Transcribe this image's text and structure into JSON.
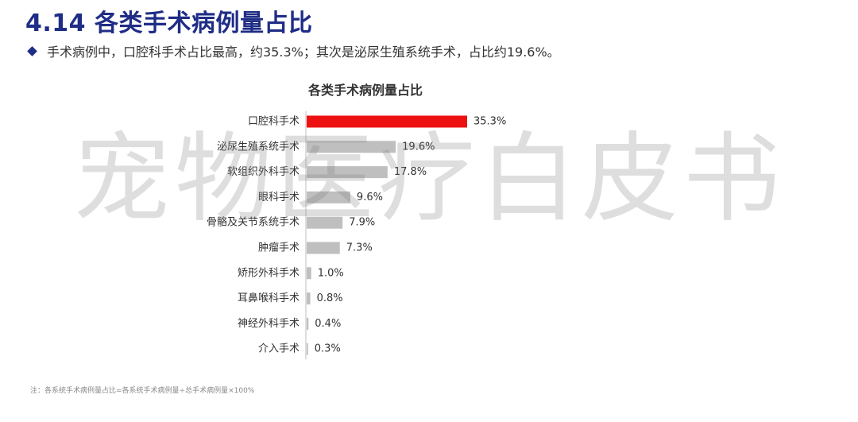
{
  "header": {
    "title": "4.14 各类手术病例量占比",
    "summary": "手术病例中，口腔科手术占比最高，约35.3%；其次是泌尿生殖系统手术，占比约19.6%。"
  },
  "watermark": "宠物医疗白皮书",
  "footnote": "注：各系统手术病例量占比=各系统手术病例量÷总手术病例量×100%",
  "colors": {
    "accent": "#1f2d86",
    "highlight_bar": "#ee1111",
    "bar": "#bfbfbf",
    "axis": "#bfbfbf"
  },
  "chart_data": {
    "type": "bar",
    "orientation": "horizontal",
    "title": "各类手术病例量占比",
    "categories": [
      "口腔科手术",
      "泌尿生殖系统手术",
      "软组织外科手术",
      "眼科手术",
      "骨骼及关节系统手术",
      "肿瘤手术",
      "矫形外科手术",
      "耳鼻喉科手术",
      "神经外科手术",
      "介入手术"
    ],
    "values": [
      35.3,
      19.6,
      17.8,
      9.6,
      7.9,
      7.3,
      1.0,
      0.8,
      0.4,
      0.3
    ],
    "value_labels": [
      "35.3%",
      "19.6%",
      "17.8%",
      "9.6%",
      "7.9%",
      "7.3%",
      "1.0%",
      "0.8%",
      "0.4%",
      "0.3%"
    ],
    "unit": "%",
    "highlight_index": 0,
    "xlim": [
      0,
      35.3
    ],
    "grid": false,
    "legend": "none"
  }
}
